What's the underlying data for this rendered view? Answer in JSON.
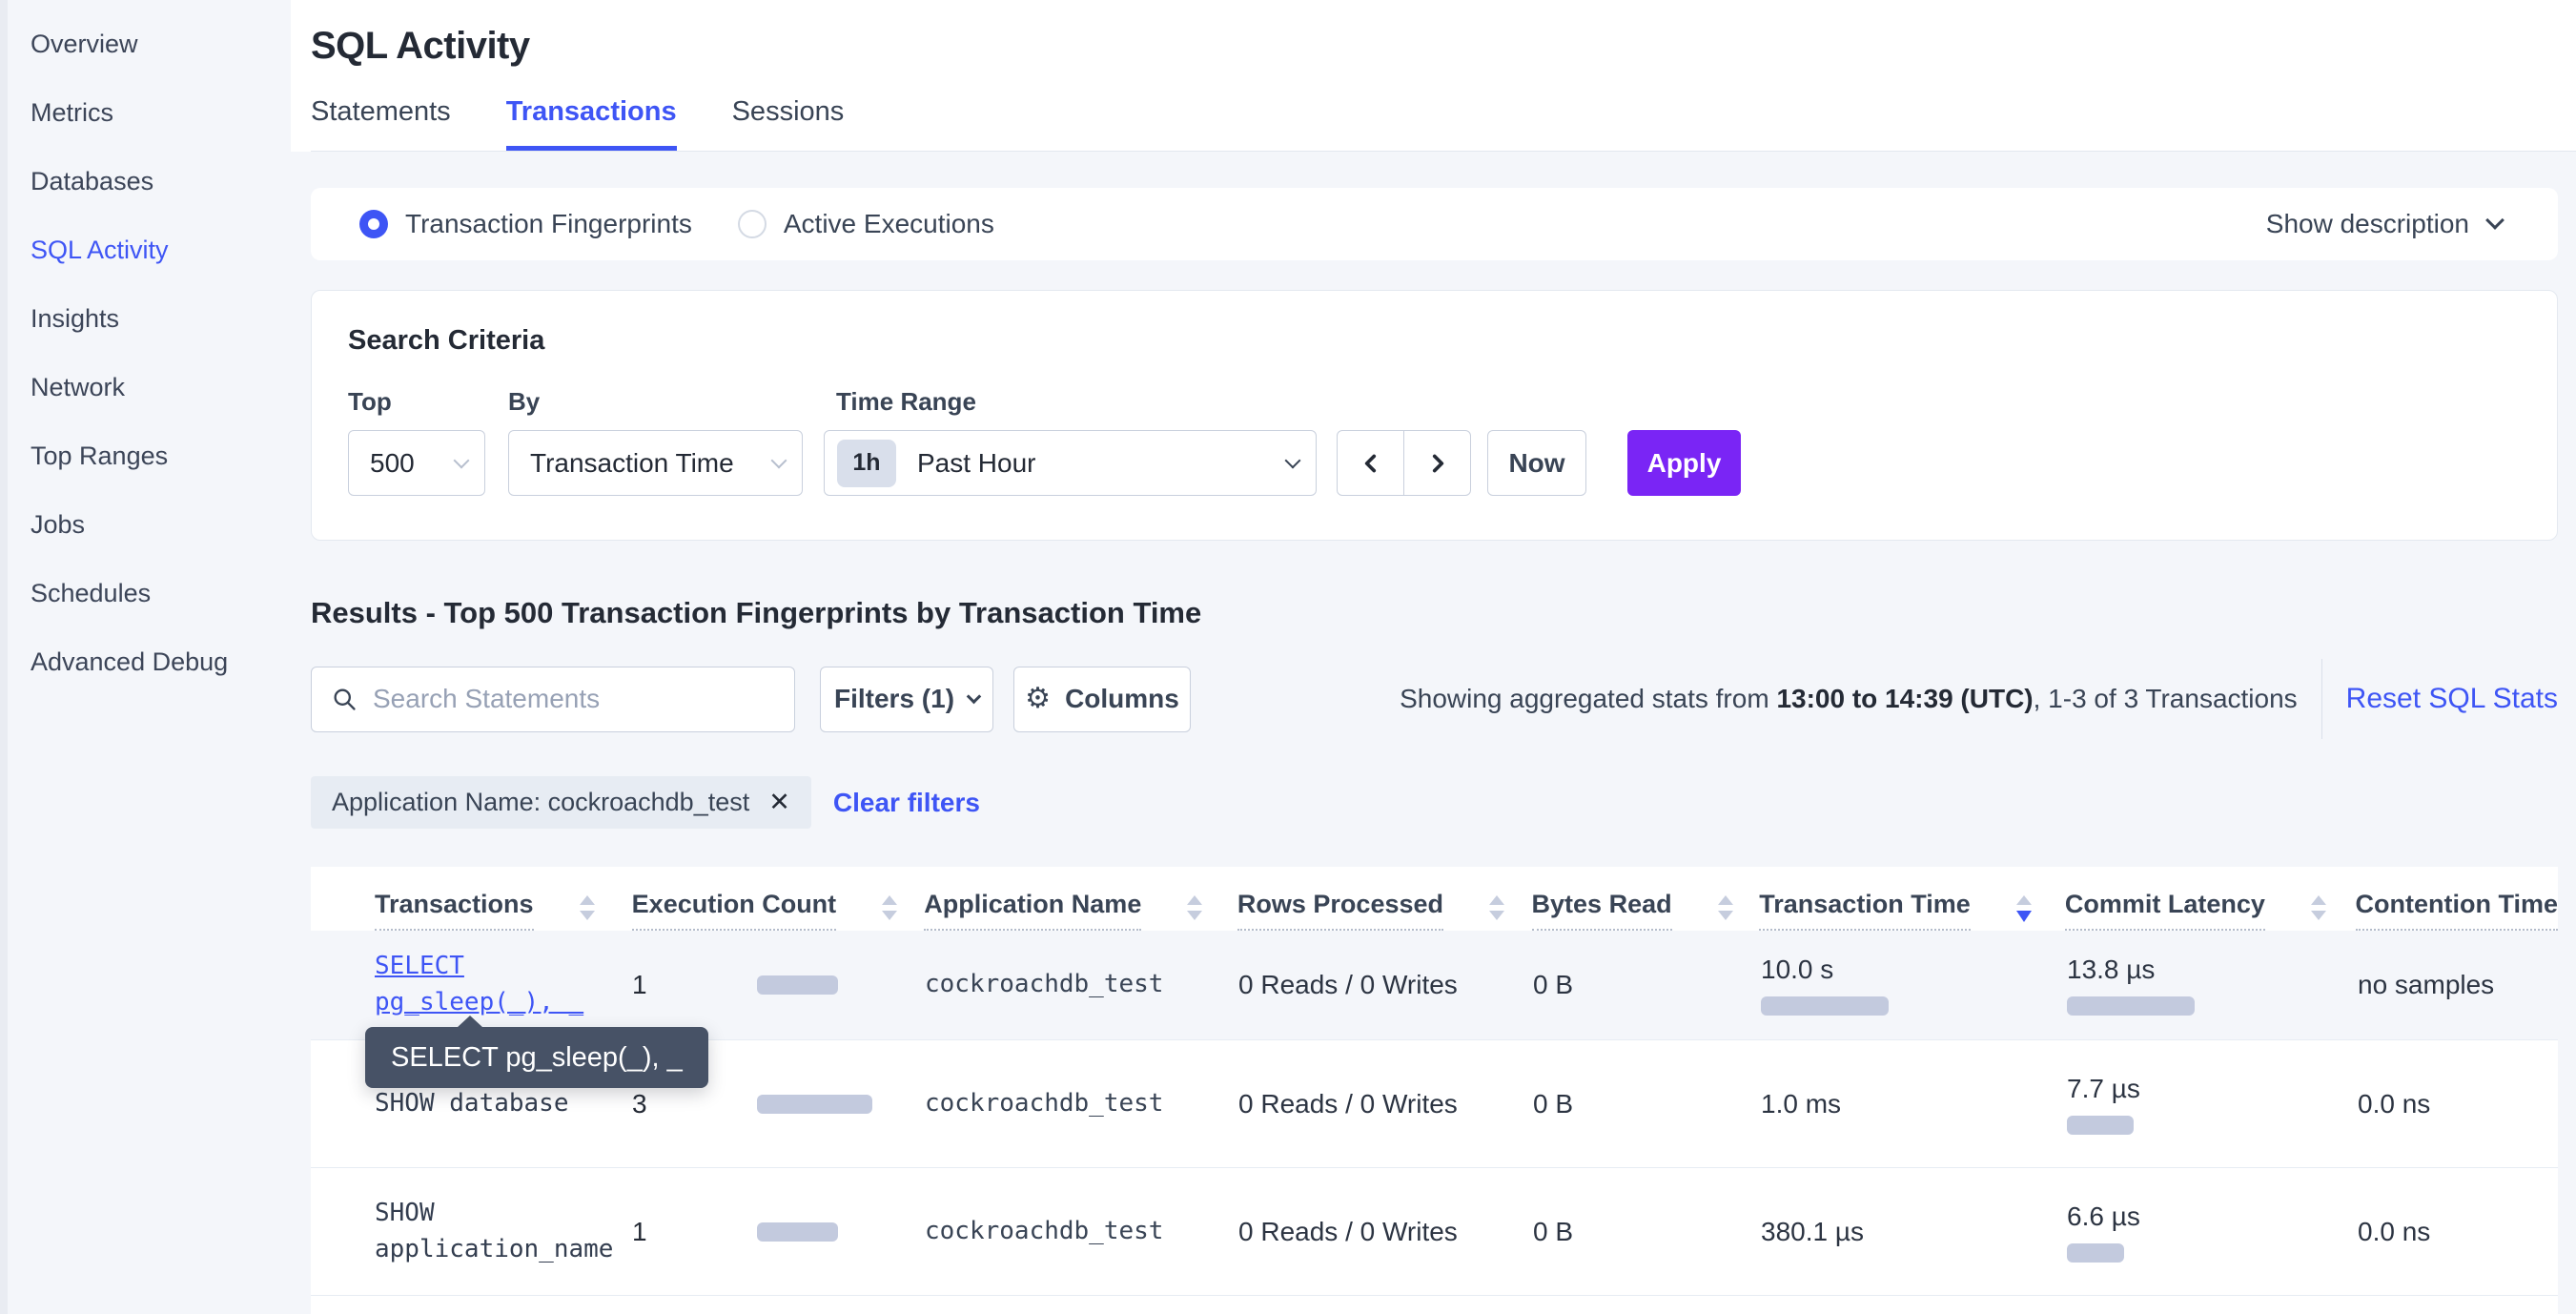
{
  "sidebar": {
    "items": [
      {
        "label": "Overview",
        "active": false
      },
      {
        "label": "Metrics",
        "active": false
      },
      {
        "label": "Databases",
        "active": false
      },
      {
        "label": "SQL Activity",
        "active": true
      },
      {
        "label": "Insights",
        "active": false
      },
      {
        "label": "Network",
        "active": false
      },
      {
        "label": "Top Ranges",
        "active": false
      },
      {
        "label": "Jobs",
        "active": false
      },
      {
        "label": "Schedules",
        "active": false
      },
      {
        "label": "Advanced Debug",
        "active": false
      }
    ]
  },
  "header": {
    "title": "SQL Activity",
    "tabs": [
      {
        "label": "Statements",
        "active": false
      },
      {
        "label": "Transactions",
        "active": true
      },
      {
        "label": "Sessions",
        "active": false
      }
    ]
  },
  "view_toggle": {
    "options": [
      {
        "label": "Transaction Fingerprints",
        "selected": true
      },
      {
        "label": "Active Executions",
        "selected": false
      }
    ],
    "show_description_label": "Show description"
  },
  "search_criteria": {
    "title": "Search Criteria",
    "top": {
      "label": "Top",
      "value": "500"
    },
    "by": {
      "label": "By",
      "value": "Transaction Time"
    },
    "time_range": {
      "label": "Time Range",
      "badge": "1h",
      "value": "Past Hour"
    },
    "now_label": "Now",
    "apply_label": "Apply"
  },
  "results": {
    "heading": "Results - Top 500 Transaction Fingerprints by Transaction Time",
    "search_placeholder": "Search Statements",
    "filters_label": "Filters (1)",
    "columns_label": "Columns",
    "stats_prefix": "Showing aggregated stats from ",
    "stats_range": "13:00 to 14:39 (UTC)",
    "stats_suffix": ", 1-3 of 3 Transactions",
    "reset_label": "Reset SQL Stats",
    "filter_chip": "Application Name: cockroachdb_test",
    "chip_close": "✕",
    "clear_filters_label": "Clear filters"
  },
  "tooltip": {
    "text": "SELECT pg_sleep(_), _"
  },
  "table": {
    "columns": [
      {
        "label": "Transactions",
        "sort": "none"
      },
      {
        "label": "Execution Count",
        "sort": "none"
      },
      {
        "label": "Application Name",
        "sort": "none"
      },
      {
        "label": "Rows Processed",
        "sort": "none"
      },
      {
        "label": "Bytes Read",
        "sort": "none"
      },
      {
        "label": "Transaction Time",
        "sort": "desc"
      },
      {
        "label": "Commit Latency",
        "sort": "none"
      },
      {
        "label": "Contention Time",
        "sort": "none"
      }
    ],
    "rows": [
      {
        "transaction": "SELECT pg_sleep(_), _",
        "is_link": true,
        "execution_count": "1",
        "application_name": "cockroachdb_test",
        "rows_processed": "0 Reads / 0 Writes",
        "bytes_read": "0 B",
        "transaction_time": "10.0 s",
        "commit_latency": "13.8 µs",
        "contention_time": "no samples",
        "bars": {
          "execution": 85,
          "transaction_time": 134,
          "commit_latency": 134
        }
      },
      {
        "transaction": "SHOW database",
        "is_link": false,
        "execution_count": "3",
        "application_name": "cockroachdb_test",
        "rows_processed": "0 Reads / 0 Writes",
        "bytes_read": "0 B",
        "transaction_time": "1.0 ms",
        "commit_latency": "7.7 µs",
        "contention_time": "0.0 ns",
        "bars": {
          "execution": 121,
          "transaction_time": 0,
          "commit_latency": 70
        }
      },
      {
        "transaction": "SHOW application_name",
        "is_link": false,
        "execution_count": "1",
        "application_name": "cockroachdb_test",
        "rows_processed": "0 Reads / 0 Writes",
        "bytes_read": "0 B",
        "transaction_time": "380.1 µs",
        "commit_latency": "6.6 µs",
        "contention_time": "0.0 ns",
        "bars": {
          "execution": 85,
          "transaction_time": 0,
          "commit_latency": 60
        }
      }
    ]
  },
  "colors": {
    "accent_blue": "#3e55f5",
    "accent_purple": "#7a25f5",
    "bar_fill": "#c3cade",
    "tooltip_bg": "#475266",
    "page_bg": "#f4f6fa"
  }
}
